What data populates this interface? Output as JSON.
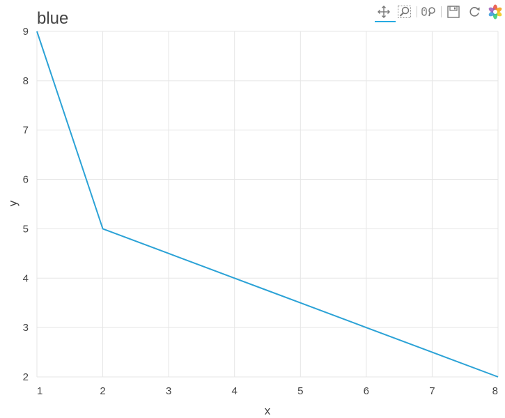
{
  "chart_data": {
    "type": "line",
    "title": "blue",
    "xlabel": "x",
    "ylabel": "y",
    "x": [
      1,
      2,
      3,
      4,
      5,
      6,
      7,
      8
    ],
    "series": [
      {
        "values": [
          9,
          5,
          4.5,
          4,
          3.5,
          3,
          2.5,
          2
        ],
        "color": "#2ba2d6"
      }
    ],
    "xlim": [
      1,
      8
    ],
    "ylim": [
      2,
      9
    ],
    "xticks": [
      1,
      2,
      3,
      4,
      5,
      6,
      7,
      8
    ],
    "yticks": [
      2,
      3,
      4,
      5,
      6,
      7,
      8,
      9
    ],
    "grid": true
  },
  "toolbar": {
    "tools": [
      {
        "icon": "pan-icon",
        "active": true
      },
      {
        "icon": "box-zoom-icon",
        "active": false
      },
      {
        "icon": "wheel-zoom-icon",
        "active": false
      },
      {
        "icon": "save-icon",
        "active": false
      },
      {
        "icon": "reset-icon",
        "active": false
      },
      {
        "icon": "bokeh-logo-icon",
        "active": false
      }
    ],
    "accent": "#26aae1"
  }
}
